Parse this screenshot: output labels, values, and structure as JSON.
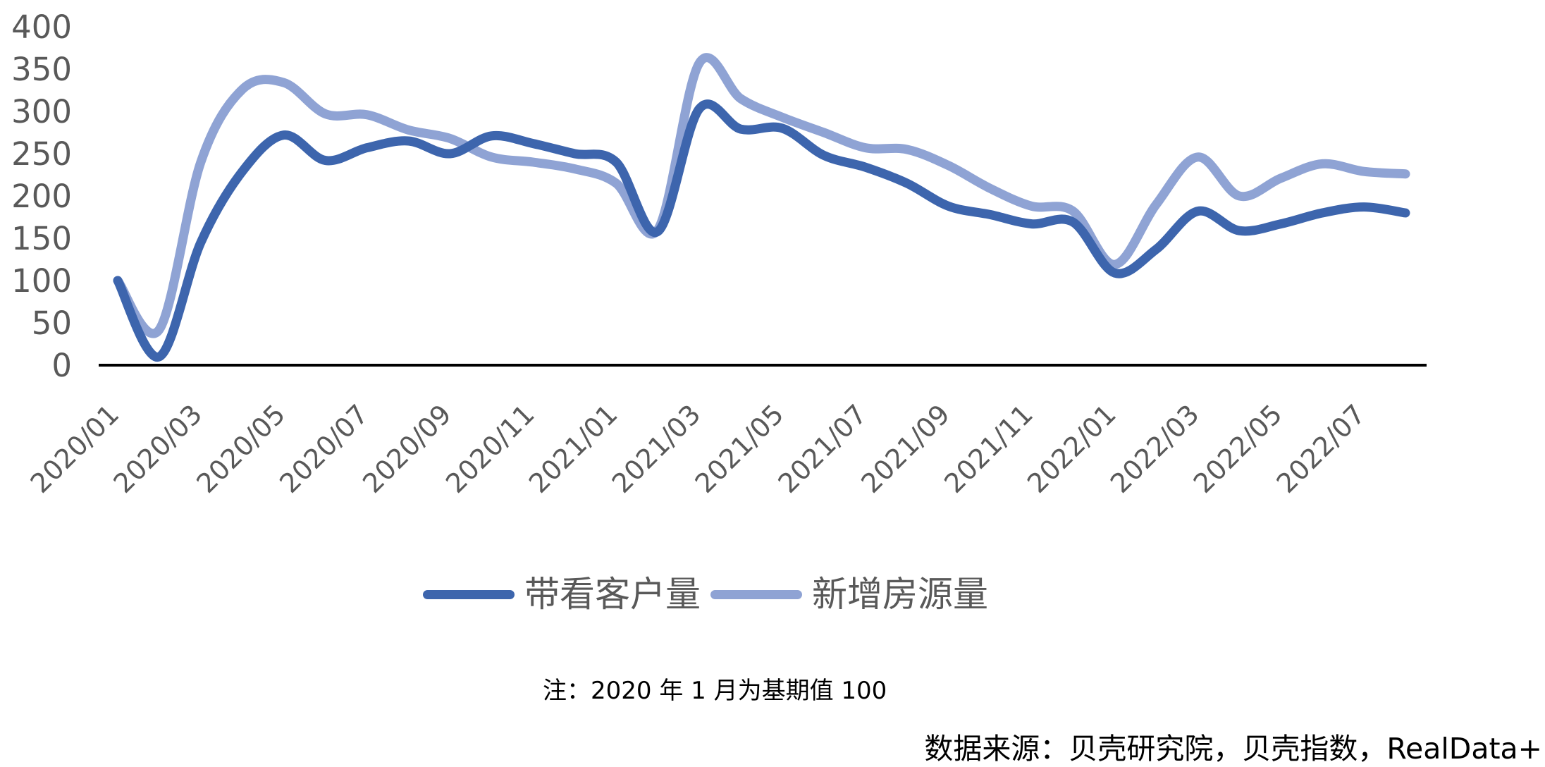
{
  "chart_data": {
    "type": "line",
    "title": "",
    "xlabel": "",
    "ylabel": "",
    "ylim": [
      0,
      400
    ],
    "yticks": [
      0,
      50,
      100,
      150,
      200,
      250,
      300,
      350,
      400
    ],
    "grid": false,
    "smooth": true,
    "legend_position": "bottom",
    "x": [
      "2020/01",
      "2020/02",
      "2020/03",
      "2020/04",
      "2020/05",
      "2020/06",
      "2020/07",
      "2020/08",
      "2020/09",
      "2020/10",
      "2020/11",
      "2020/12",
      "2021/01",
      "2021/02",
      "2021/03",
      "2021/04",
      "2021/05",
      "2021/06",
      "2021/07",
      "2021/08",
      "2021/09",
      "2021/10",
      "2021/11",
      "2021/12",
      "2022/01",
      "2022/02",
      "2022/03",
      "2022/04",
      "2022/05",
      "2022/06",
      "2022/07",
      "2022/08"
    ],
    "xtick_labels": [
      "2020/01",
      "2020/03",
      "2020/05",
      "2020/07",
      "2020/09",
      "2020/11",
      "2021/01",
      "2021/03",
      "2021/05",
      "2021/07",
      "2021/09",
      "2021/11",
      "2022/01",
      "2022/03",
      "2022/05",
      "2022/07"
    ],
    "series": [
      {
        "name": "带看客户量",
        "color": "#3d65ad",
        "values": [
          100,
          10,
          145,
          229,
          272,
          242,
          257,
          265,
          250,
          271,
          262,
          250,
          240,
          158,
          303,
          279,
          280,
          248,
          234,
          215,
          188,
          178,
          167,
          169,
          109,
          137,
          182,
          159,
          167,
          180,
          187,
          180
        ]
      },
      {
        "name": "新增房源量",
        "color": "#8fa3d4",
        "values": [
          100,
          42,
          240,
          326,
          334,
          297,
          296,
          278,
          268,
          246,
          240,
          232,
          215,
          160,
          357,
          315,
          293,
          275,
          257,
          255,
          236,
          209,
          188,
          182,
          119,
          190,
          246,
          200,
          221,
          238,
          229,
          226
        ]
      }
    ]
  },
  "legend": {
    "items": [
      {
        "label": "带看客户量",
        "color": "#3d65ad"
      },
      {
        "label": "新增房源量",
        "color": "#8fa3d4"
      }
    ]
  },
  "note": "注：2020 年 1 月为基期值 100",
  "source": "数据来源：贝壳研究院，贝壳指数，RealData+"
}
